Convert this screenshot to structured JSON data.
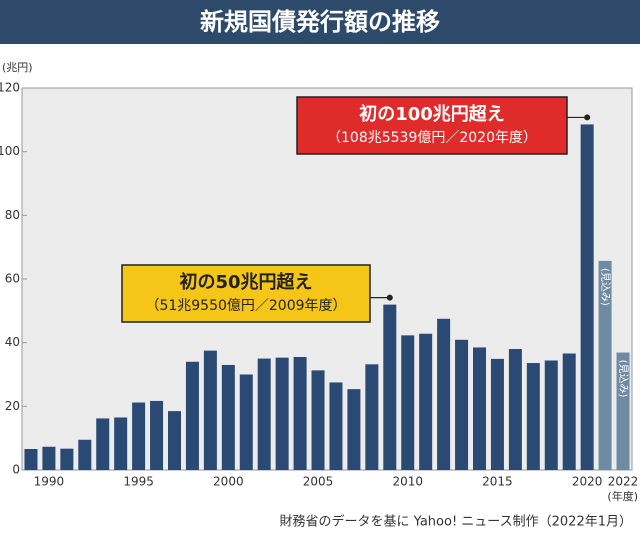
{
  "chart_data": {
    "type": "bar",
    "title": "新規国債発行額の推移",
    "y_unit": "(兆円)",
    "x_unit": "(年度)",
    "source": "財務省のデータを基に Yahoo! ニュース制作（2022年1月）",
    "categories": [
      null,
      "1990",
      null,
      null,
      null,
      null,
      "1995",
      null,
      null,
      null,
      null,
      "2000",
      null,
      null,
      null,
      null,
      "2005",
      null,
      null,
      null,
      null,
      "2010",
      null,
      null,
      null,
      null,
      "2015",
      null,
      null,
      null,
      null,
      "2020",
      null,
      "2022"
    ],
    "values": [
      6.6,
      7.3,
      6.7,
      9.5,
      16.2,
      16.5,
      21.2,
      21.7,
      18.5,
      34.0,
      37.5,
      33.0,
      30.0,
      35.0,
      35.3,
      35.5,
      31.3,
      27.5,
      25.4,
      33.2,
      51.955,
      42.3,
      42.8,
      47.5,
      40.9,
      38.5,
      34.9,
      38.0,
      33.6,
      34.4,
      36.6,
      108.5539,
      65.7,
      36.9
    ],
    "bar_colors": [
      "#2b4a73",
      "#2b4a73",
      "#2b4a73",
      "#2b4a73",
      "#2b4a73",
      "#2b4a73",
      "#2b4a73",
      "#2b4a73",
      "#2b4a73",
      "#2b4a73",
      "#2b4a73",
      "#2b4a73",
      "#2b4a73",
      "#2b4a73",
      "#2b4a73",
      "#2b4a73",
      "#2b4a73",
      "#2b4a73",
      "#2b4a73",
      "#2b4a73",
      "#2b4a73",
      "#2b4a73",
      "#2b4a73",
      "#2b4a73",
      "#2b4a73",
      "#2b4a73",
      "#2b4a73",
      "#2b4a73",
      "#2b4a73",
      "#2b4a73",
      "#2b4a73",
      "#2b4a73",
      "#6f8ba3",
      "#6f8ba3"
    ],
    "projection_labels": [
      "(見込み)",
      "(見込み)"
    ],
    "annotations": [
      {
        "text": "初の50兆円超え",
        "detail": "（51兆9550億円／2009年度）"
      },
      {
        "text": "初の100兆円超え",
        "detail": "（108兆5539億円／2020年度）"
      }
    ],
    "ylim": [
      0,
      120
    ],
    "yticks": [
      0,
      20,
      40,
      60,
      80,
      100,
      120
    ]
  }
}
